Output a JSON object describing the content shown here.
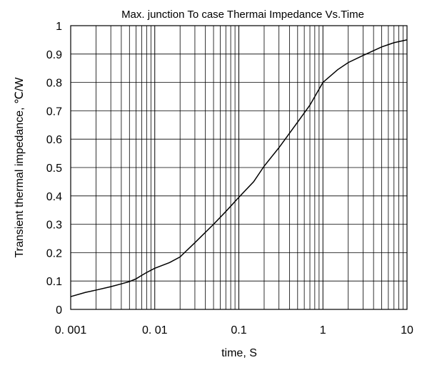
{
  "chart_data": {
    "type": "line",
    "title": "Max. junction To case Thermai  Impedance  Vs.Time",
    "xlabel": "time, S",
    "ylabel": "Transient thermal impedance, ℃/W",
    "x_scale": "log",
    "xlim": [
      0.001,
      10
    ],
    "ylim": [
      0,
      1
    ],
    "grid": true,
    "x_ticks": [
      0.001,
      0.01,
      0.1,
      1,
      10
    ],
    "x_tick_labels": [
      "0. 001",
      "0. 01",
      "0.1",
      "1",
      "10"
    ],
    "y_ticks": [
      0,
      0.1,
      0.2,
      0.3,
      0.4,
      0.5,
      0.6,
      0.7,
      0.8,
      0.9,
      1
    ],
    "y_tick_labels": [
      "0",
      "0.1",
      "0.2",
      "0.3",
      "0.4",
      "0.5",
      "0.6",
      "0.7",
      "0.8",
      "0.9",
      "1"
    ],
    "colors": {
      "line": "#000000",
      "grid": "#000000"
    },
    "series": [
      {
        "x": [
          0.001,
          0.0015,
          0.002,
          0.003,
          0.004,
          0.005,
          0.006,
          0.007,
          0.008,
          0.01,
          0.015,
          0.02,
          0.03,
          0.05,
          0.07,
          0.1,
          0.15,
          0.2,
          0.3,
          0.5,
          0.7,
          1,
          1.5,
          2,
          3,
          5,
          7,
          10
        ],
        "y": [
          0.045,
          0.06,
          0.068,
          0.08,
          0.09,
          0.098,
          0.108,
          0.12,
          0.13,
          0.145,
          0.165,
          0.185,
          0.235,
          0.3,
          0.345,
          0.395,
          0.45,
          0.505,
          0.57,
          0.66,
          0.72,
          0.8,
          0.845,
          0.87,
          0.895,
          0.925,
          0.94,
          0.95
        ]
      }
    ]
  }
}
